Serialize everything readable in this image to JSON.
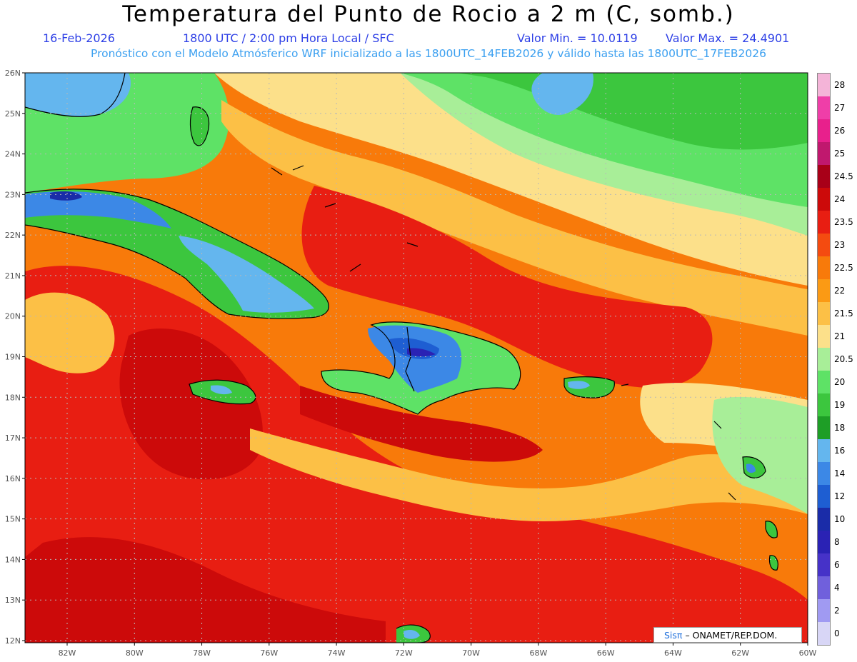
{
  "title": "Temperatura del Punto de Rocio a 2 m (C, somb.)",
  "date": "16-Feb-2026",
  "time_label": "1800 UTC / 2:00 pm Hora Local / SFC",
  "min_label": "Valor Min. = 10.0119",
  "max_label": "Valor Max. = 24.4901",
  "forecast_line": "Pronóstico con el Modelo Atmósferico WRF inicializado a las 1800UTC_14FEB2026 y válido hasta las  1800UTC_17FEB2026",
  "credit": {
    "brand": "Sisπ",
    "text": "– ONAMET/REP.DOM."
  },
  "lat_labels": [
    "26N",
    "25N",
    "24N",
    "23N",
    "22N",
    "21N",
    "20N",
    "19N",
    "18N",
    "17N",
    "16N",
    "15N",
    "14N",
    "13N",
    "12N"
  ],
  "lon_labels": [
    "82W",
    "80W",
    "78W",
    "76W",
    "74W",
    "72W",
    "70W",
    "68W",
    "66W",
    "64W",
    "62W",
    "60W"
  ],
  "colorbar": {
    "labels": [
      "28",
      "27",
      "26",
      "25",
      "24.5",
      "24",
      "23.5",
      "23",
      "22.5",
      "22",
      "21.5",
      "21",
      "20.5",
      "20",
      "19",
      "18",
      "16",
      "14",
      "12",
      "10",
      "8",
      "6",
      "4",
      "2",
      "0"
    ],
    "colors": [
      "#f4b4d8",
      "#ef3ea8",
      "#e8208c",
      "#c0186e",
      "#a80018",
      "#cc0a0a",
      "#e81e12",
      "#f44b10",
      "#f87a0a",
      "#fb9a14",
      "#fcc046",
      "#fce08a",
      "#a8ee98",
      "#5ee266",
      "#3cc63e",
      "#1e9e26",
      "#64b6ee",
      "#3c88e6",
      "#1e5ed2",
      "#1a2ca8",
      "#2a22b4",
      "#4632c8",
      "#7060dc",
      "#a09af2",
      "#d8d6f6"
    ]
  }
}
